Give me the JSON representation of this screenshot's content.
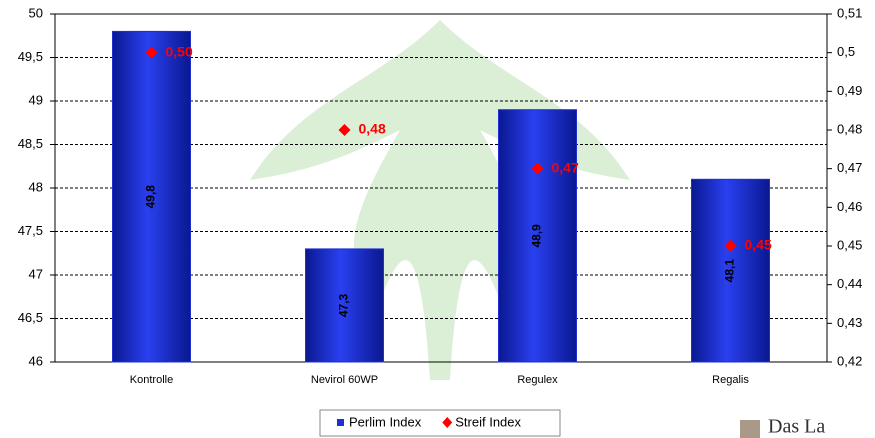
{
  "chart_data": {
    "type": "bar+scatter",
    "categories": [
      "Kontrolle",
      "Nevirol 60WP",
      "Regulex",
      "Regalis"
    ],
    "series": [
      {
        "name": "Perlim Index",
        "type": "bar",
        "color": "#1f2fd0",
        "values": [
          49.8,
          47.3,
          48.9,
          48.1
        ],
        "value_labels": [
          "49,8",
          "47,3",
          "48,9",
          "48,1"
        ]
      },
      {
        "name": "Streif Index",
        "type": "scatter",
        "axis": "y2",
        "color": "#ff0000",
        "values": [
          0.5,
          0.48,
          0.47,
          0.45
        ],
        "value_labels": [
          "0,50",
          "0,48",
          "0,47",
          "0,45"
        ]
      }
    ],
    "ylim": [
      46,
      50
    ],
    "yticks": [
      46,
      {
        "value": 46.5,
        "label": "46,5"
      },
      47,
      {
        "value": 47.5,
        "label": "47,5"
      },
      48,
      {
        "value": 48.5,
        "label": "48,5"
      },
      49,
      {
        "value": 49.5,
        "label": "49,5"
      },
      50
    ],
    "y2lim": [
      0.42,
      0.51
    ],
    "y2ticks": [
      {
        "value": 0.42,
        "label": "0,42"
      },
      {
        "value": 0.43,
        "label": "0,43"
      },
      {
        "value": 0.44,
        "label": "0,44"
      },
      {
        "value": 0.45,
        "label": "0,45"
      },
      {
        "value": 0.46,
        "label": "0,46"
      },
      {
        "value": 0.47,
        "label": "0,47"
      },
      {
        "value": 0.48,
        "label": "0,48"
      },
      {
        "value": 0.49,
        "label": "0,49"
      },
      {
        "value": 0.5,
        "label": "0,5"
      },
      {
        "value": 0.51,
        "label": "0,51"
      }
    ],
    "grid": true,
    "legend": "bottom",
    "logo_text": "Das La"
  }
}
